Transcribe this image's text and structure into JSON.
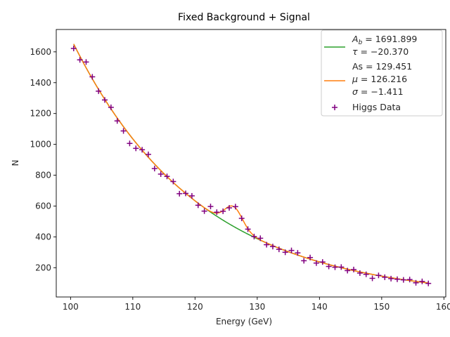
{
  "chart_data": {
    "type": "scatter",
    "title": "Fixed Background + Signal",
    "xlabel": "Energy (GeV)",
    "ylabel": "N",
    "xlim": [
      97.7,
      160.3
    ],
    "ylim": [
      10,
      1745
    ],
    "x_ticks": [
      100,
      110,
      120,
      130,
      140,
      150,
      160
    ],
    "y_ticks": [
      200,
      400,
      600,
      800,
      1000,
      1200,
      1400,
      1600
    ],
    "grid": false,
    "legend_position": "top-right",
    "legend": {
      "background_entry": {
        "line1_symbol": "A",
        "line1_sub": "b",
        "line1_value": " = 1691.899",
        "line2_symbol": "τ",
        "line2_value": " = −20.370",
        "color": "#2ca02c"
      },
      "signal_entry": {
        "line1": "As = 129.451",
        "line2_symbol": "μ",
        "line2_value": " = 126.216",
        "line3_symbol": "σ",
        "line3_value": " = −1.411",
        "color": "#ff7f0e"
      },
      "data_entry": {
        "label": "Higgs Data",
        "color": "#800080"
      }
    },
    "background_fit": {
      "Ab": 1691.899,
      "tau": -20.37,
      "x_start": 100.5,
      "x_end": 157.5,
      "color": "#2ca02c"
    },
    "signal_fit": {
      "As": 129.451,
      "mu": 126.216,
      "sigma": -1.411,
      "color": "#ff7f0e"
    },
    "series": [
      {
        "name": "Higgs Data",
        "color": "#800080",
        "marker": "+",
        "x": [
          100.5,
          101.5,
          102.5,
          103.5,
          104.5,
          105.5,
          106.5,
          107.5,
          108.5,
          109.5,
          110.5,
          111.5,
          112.5,
          113.5,
          114.5,
          115.5,
          116.5,
          117.5,
          118.5,
          119.5,
          120.5,
          121.5,
          122.5,
          123.5,
          124.5,
          125.5,
          126.5,
          127.5,
          128.5,
          129.5,
          130.5,
          131.5,
          132.5,
          133.5,
          134.5,
          135.5,
          136.5,
          137.5,
          138.5,
          139.5,
          140.5,
          141.5,
          142.5,
          143.5,
          144.5,
          145.5,
          146.5,
          147.5,
          148.5,
          149.5,
          150.5,
          151.5,
          152.5,
          153.5,
          154.5,
          155.5,
          156.5,
          157.5
        ],
        "y": [
          1622,
          1548,
          1534,
          1438,
          1345,
          1288,
          1240,
          1152,
          1087,
          1006,
          974,
          965,
          935,
          843,
          807,
          792,
          759,
          680,
          682,
          666,
          605,
          567,
          597,
          560,
          566,
          588,
          596,
          520,
          450,
          402,
          391,
          349,
          337,
          319,
          300,
          312,
          296,
          245,
          266,
          230,
          237,
          208,
          203,
          204,
          181,
          188,
          165,
          157,
          131,
          150,
          138,
          129,
          125,
          121,
          123,
          102,
          111,
          98
        ]
      }
    ]
  }
}
